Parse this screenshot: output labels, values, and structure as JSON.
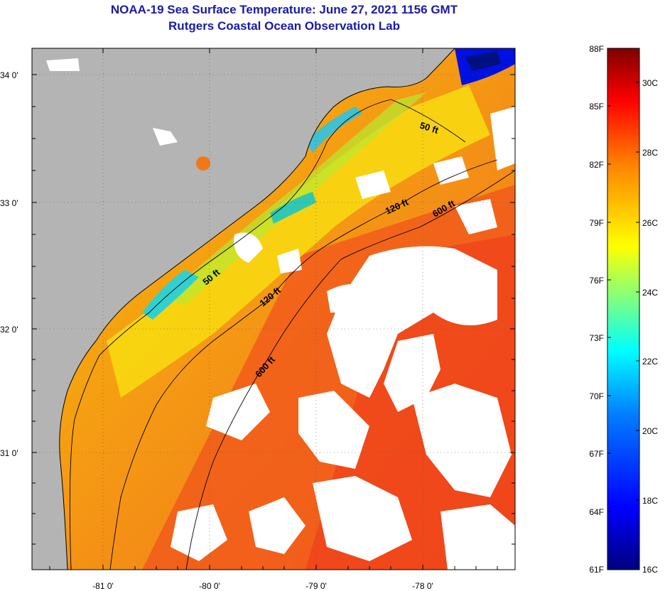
{
  "title": "NOAA-19 Sea Surface Temperature:  June 27, 2021 1156 GMT",
  "subtitle": "Rutgers Coastal Ocean Observation Lab",
  "map": {
    "lat_labels": [
      "34 0'",
      "33 0'",
      "32 0'",
      "31 0'"
    ],
    "lon_labels": [
      "-81 0'",
      "-80 0'",
      "-79 0'",
      "-78 0'"
    ],
    "contour_labels": [
      "50 ft",
      "120 ft",
      "600 ft",
      "50 ft",
      "120 ft",
      "600 ft"
    ],
    "colors": {
      "land": "#b4b4b4",
      "cloud": "#ffffff"
    }
  },
  "colorbar": {
    "fahrenheit": [
      "88F",
      "85F",
      "82F",
      "79F",
      "76F",
      "73F",
      "70F",
      "67F",
      "64F",
      "61F"
    ],
    "celsius": [
      "30C",
      "28C",
      "26C",
      "24C",
      "22C",
      "20C",
      "18C",
      "16C"
    ],
    "colors": [
      "#00007f",
      "#0000ff",
      "#0080ff",
      "#00ffff",
      "#80ff80",
      "#ffff00",
      "#ff8000",
      "#ff0000",
      "#7f0000"
    ]
  }
}
